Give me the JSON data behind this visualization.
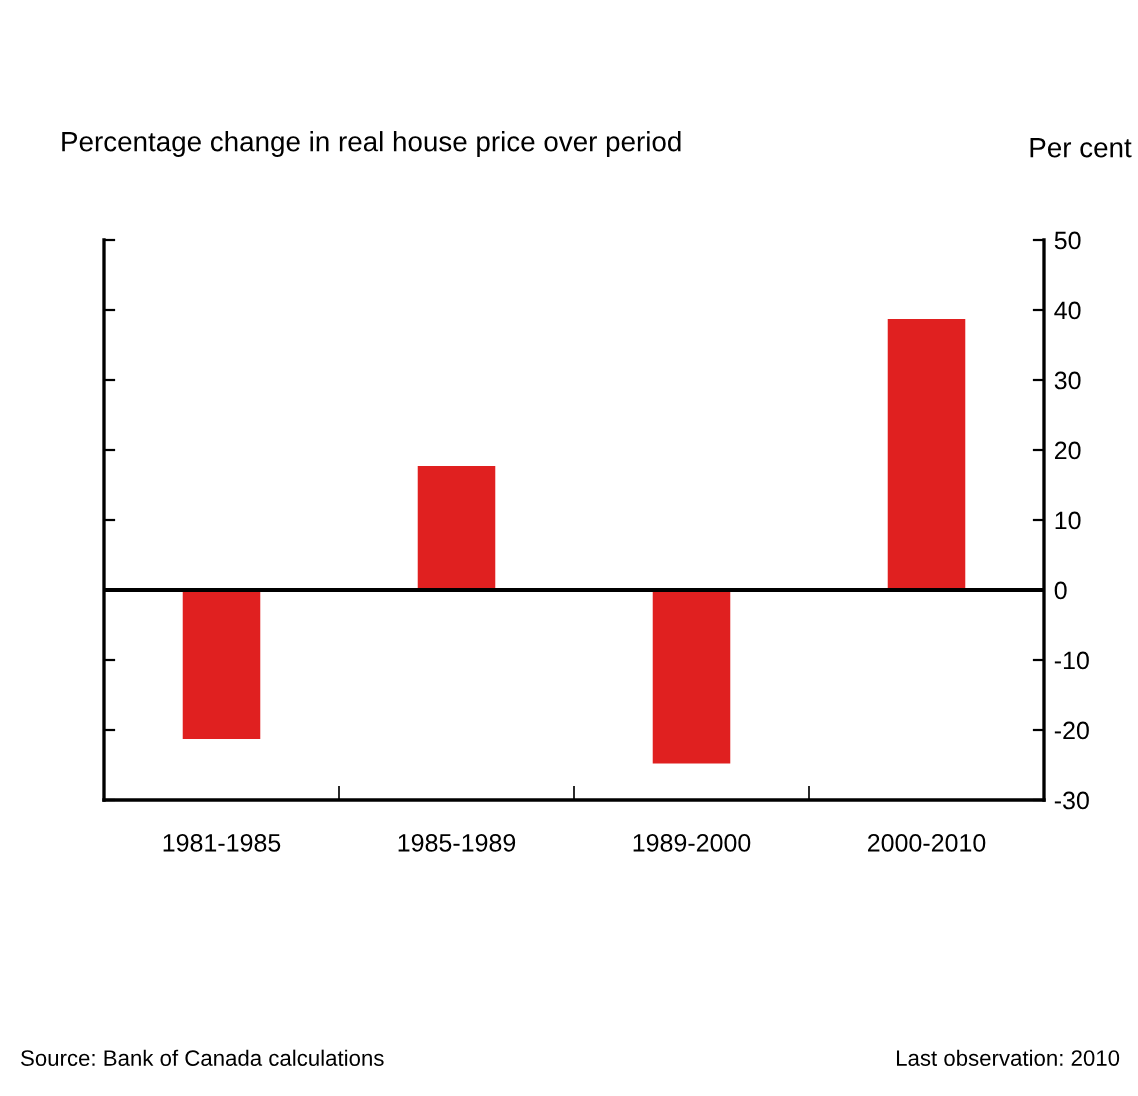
{
  "chart_data": {
    "type": "bar",
    "title": "Percentage change in real house price over period",
    "ylabel": "Per cent",
    "categories": [
      "1981-1985",
      "1985-1989",
      "1989-2000",
      "2000-2010"
    ],
    "values": [
      -21.3,
      17.7,
      -24.8,
      38.7
    ],
    "color": "#e02020",
    "ylim": [
      -30,
      50
    ],
    "yticks": [
      -30,
      -20,
      -10,
      0,
      10,
      20,
      30,
      40,
      50
    ],
    "ref_lines": [
      {
        "axis": "y",
        "value": 0,
        "color": "#000000"
      }
    ],
    "grid": false,
    "annotations": [
      "Source: Bank of Canada calculations",
      "Last observation: 2010"
    ]
  }
}
